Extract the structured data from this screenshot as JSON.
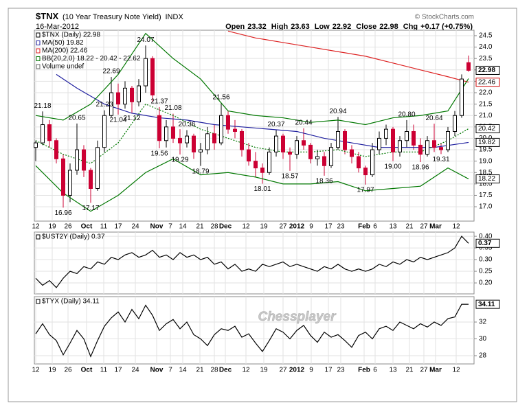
{
  "header": {
    "symbol": "$TNX",
    "name": "(10 Year Treasury Note Yield)",
    "exchange": "INDX",
    "date": "16-Mar-2012",
    "quote": [
      {
        "label": "Open",
        "value": "23.32"
      },
      {
        "label": "High",
        "value": "23.63"
      },
      {
        "label": "Low",
        "value": "22.92"
      },
      {
        "label": "Close",
        "value": "22.98"
      },
      {
        "label": "Chg",
        "value": "+0.17 (+0.75%)"
      }
    ],
    "source": "© StockCharts.com",
    "watermark": "Chessplayer"
  },
  "chart_data": [
    {
      "type": "candlestick",
      "legend": [
        {
          "label": "$TNX (Daily) 22.98",
          "color": "#000000"
        },
        {
          "label": "MA(50) 19.82",
          "color": "#1f1f9f"
        },
        {
          "label": "MA(200) 22.46",
          "color": "#dd2222"
        },
        {
          "label": "BB(20,2.0) 18.22 - 20.42 - 22.62",
          "color": "#007700"
        },
        {
          "label": "Volume undef",
          "color": "#666666"
        }
      ],
      "up_color": "#000000",
      "down_color": "#cc0033",
      "open": [
        19.6,
        19.8,
        20.6,
        19.9,
        19.1,
        17.5,
        18.6,
        19.5,
        18.6,
        17.8,
        19.6,
        21.0,
        22.0,
        21.5,
        22.2,
        21.6,
        22.3,
        23.5,
        21.0,
        19.9,
        20.5,
        20.0,
        19.8,
        20.1,
        19.4,
        19.5,
        20.2,
        19.8,
        21.0,
        20.4,
        20.3,
        19.5,
        19.0,
        18.7,
        18.5,
        19.4,
        20.1,
        19.4,
        19.3,
        19.9,
        19.7,
        19.1,
        19.2,
        18.8,
        19.6,
        20.3,
        19.5,
        19.2,
        18.7,
        18.4,
        19.5,
        20.0,
        20.4,
        19.4,
        19.9,
        20.3,
        19.7,
        19.3,
        19.9,
        19.6,
        19.5,
        20.3,
        21.0,
        23.32
      ],
      "high": [
        19.9,
        21.18,
        20.8,
        20.0,
        19.3,
        18.9,
        20.65,
        19.7,
        18.7,
        19.9,
        21.23,
        22.69,
        22.4,
        22.5,
        22.3,
        22.6,
        24.07,
        23.6,
        21.37,
        20.8,
        21.08,
        20.4,
        20.36,
        20.2,
        19.8,
        20.5,
        20.6,
        21.56,
        21.2,
        20.8,
        20.4,
        19.8,
        19.4,
        18.9,
        19.6,
        20.37,
        20.2,
        19.6,
        20.1,
        20.44,
        19.8,
        19.5,
        19.4,
        19.8,
        20.94,
        20.4,
        19.7,
        19.4,
        18.8,
        19.8,
        20.3,
        20.6,
        20.5,
        20.1,
        20.8,
        20.6,
        20.0,
        20.1,
        20.64,
        19.8,
        20.5,
        21.2,
        22.8,
        23.63
      ],
      "low": [
        19.0,
        19.7,
        19.6,
        18.9,
        16.96,
        17.2,
        18.4,
        18.3,
        17.17,
        17.7,
        19.4,
        20.9,
        21.04,
        21.3,
        21.12,
        21.4,
        22.0,
        21.6,
        19.56,
        19.6,
        19.8,
        19.29,
        19.6,
        19.1,
        18.79,
        19.3,
        19.5,
        19.7,
        20.2,
        20.0,
        19.2,
        18.8,
        18.3,
        18.01,
        18.4,
        19.2,
        19.1,
        18.57,
        19.1,
        19.5,
        18.9,
        18.8,
        18.36,
        18.7,
        19.5,
        19.3,
        18.9,
        18.5,
        17.97,
        18.3,
        19.3,
        19.7,
        19.0,
        19.2,
        19.6,
        19.5,
        18.96,
        19.2,
        19.4,
        19.31,
        19.4,
        20.1,
        20.9,
        22.92
      ],
      "close": [
        19.8,
        20.6,
        19.9,
        19.1,
        17.5,
        18.6,
        19.5,
        18.6,
        17.8,
        19.6,
        21.0,
        22.0,
        21.5,
        22.2,
        21.6,
        22.3,
        23.5,
        21.9,
        19.9,
        20.5,
        20.0,
        19.8,
        20.1,
        19.4,
        19.5,
        20.2,
        19.8,
        21.0,
        20.4,
        20.3,
        19.5,
        19.0,
        18.7,
        18.5,
        19.4,
        20.1,
        19.4,
        19.3,
        19.9,
        19.7,
        19.1,
        19.2,
        18.8,
        19.6,
        20.3,
        19.5,
        19.2,
        18.7,
        18.4,
        19.5,
        20.0,
        20.4,
        19.4,
        19.9,
        20.3,
        19.7,
        19.3,
        19.9,
        19.6,
        19.5,
        20.3,
        21.0,
        22.6,
        22.98
      ],
      "series": [
        {
          "color": "#1f1f9f",
          "dash": false,
          "x": [
            3,
            6,
            10,
            14,
            18,
            22,
            26,
            30,
            34,
            38,
            42,
            46,
            50,
            54,
            58,
            63
          ],
          "values": [
            22.8,
            22.2,
            21.5,
            21.1,
            20.9,
            20.8,
            20.6,
            20.5,
            20.4,
            20.3,
            20.0,
            19.8,
            19.6,
            19.6,
            19.6,
            19.82
          ]
        },
        {
          "color": "#dd2222",
          "dash": false,
          "x": [
            28,
            32,
            36,
            40,
            44,
            48,
            52,
            56,
            60,
            63
          ],
          "values": [
            24.7,
            24.4,
            24.2,
            24.0,
            23.8,
            23.6,
            23.3,
            23.0,
            22.7,
            22.46
          ]
        },
        {
          "color": "#007700",
          "dash": false,
          "x": [
            0,
            4,
            8,
            12,
            16,
            20,
            24,
            28,
            32,
            36,
            40,
            44,
            48,
            52,
            56,
            60,
            63
          ],
          "values": [
            21.0,
            20.8,
            21.5,
            22.8,
            24.6,
            23.5,
            22.6,
            21.2,
            21.0,
            20.9,
            20.7,
            20.8,
            20.6,
            20.9,
            21.0,
            21.2,
            22.62
          ]
        },
        {
          "color": "#007700",
          "dash": false,
          "x": [
            0,
            4,
            8,
            12,
            16,
            20,
            24,
            28,
            32,
            36,
            40,
            44,
            48,
            52,
            56,
            60,
            63
          ],
          "values": [
            18.8,
            17.6,
            16.8,
            17.5,
            18.5,
            19.1,
            18.4,
            18.5,
            18.3,
            18.0,
            18.0,
            18.1,
            17.7,
            17.8,
            17.9,
            18.7,
            18.22
          ]
        },
        {
          "color": "#007700",
          "dash": true,
          "x": [
            0,
            4,
            8,
            12,
            16,
            20,
            24,
            28,
            32,
            36,
            40,
            44,
            48,
            52,
            56,
            60,
            63
          ],
          "values": [
            19.9,
            19.3,
            18.9,
            19.8,
            21.5,
            21.0,
            20.4,
            20.0,
            19.6,
            19.4,
            19.4,
            19.5,
            19.2,
            19.4,
            19.4,
            19.9,
            20.42
          ]
        }
      ],
      "annotations": [
        {
          "x": 1,
          "value": 21.18,
          "side": "above"
        },
        {
          "x": 6,
          "value": 20.65,
          "side": "above"
        },
        {
          "x": 10,
          "value": 21.23,
          "side": "above"
        },
        {
          "x": 11,
          "value": 22.69,
          "side": "above"
        },
        {
          "x": 16,
          "value": 24.07,
          "side": "above"
        },
        {
          "x": 18,
          "value": 21.37,
          "side": "above"
        },
        {
          "x": 20,
          "value": 21.08,
          "side": "above"
        },
        {
          "x": 22,
          "value": 20.36,
          "side": "above"
        },
        {
          "x": 27,
          "value": 21.56,
          "side": "above"
        },
        {
          "x": 35,
          "value": 20.37,
          "side": "above"
        },
        {
          "x": 39,
          "value": 20.44,
          "side": "above"
        },
        {
          "x": 44,
          "value": 20.94,
          "side": "above"
        },
        {
          "x": 54,
          "value": 20.8,
          "label": "20.80",
          "side": "above"
        },
        {
          "x": 58,
          "value": 20.64,
          "side": "above"
        },
        {
          "x": 4,
          "value": 16.96,
          "side": "below"
        },
        {
          "x": 8,
          "value": 17.17,
          "side": "below"
        },
        {
          "x": 12,
          "value": 21.04,
          "side": "below"
        },
        {
          "x": 14,
          "value": 21.12,
          "side": "below"
        },
        {
          "x": 18,
          "value": 19.56,
          "side": "below"
        },
        {
          "x": 21,
          "value": 19.29,
          "side": "below"
        },
        {
          "x": 24,
          "value": 18.79,
          "side": "below"
        },
        {
          "x": 33,
          "value": 18.01,
          "side": "below"
        },
        {
          "x": 37,
          "value": 18.57,
          "side": "below"
        },
        {
          "x": 42,
          "value": 18.36,
          "side": "below"
        },
        {
          "x": 48,
          "value": 17.97,
          "side": "below"
        },
        {
          "x": 52,
          "value": 19,
          "label": "19.00",
          "side": "below"
        },
        {
          "x": 56,
          "value": 18.96,
          "side": "below"
        },
        {
          "x": 59,
          "value": 19.31,
          "side": "below"
        }
      ],
      "last_labels": [
        {
          "value": 22.98,
          "color": "#000000",
          "bold": true
        },
        {
          "value": 22.46,
          "color": "#cc0000",
          "bold": false
        },
        {
          "value": 20.42,
          "color": "#000000",
          "bold": false
        },
        {
          "value": 19.82,
          "color": "#000000",
          "bold": false
        },
        {
          "value": 18.22,
          "color": "#000000",
          "bold": false
        }
      ],
      "xlim": [
        -0.2,
        63.8
      ],
      "xticks": [
        {
          "value": 0,
          "label": "12"
        },
        {
          "value": 2.4,
          "label": "19"
        },
        {
          "value": 4.7,
          "label": "26"
        },
        {
          "value": 7.4,
          "label": "Oct"
        },
        {
          "value": 9.9,
          "label": "11"
        },
        {
          "value": 12,
          "label": "17"
        },
        {
          "value": 14.5,
          "label": "24"
        },
        {
          "value": 17.6,
          "label": "Nov"
        },
        {
          "value": 19.6,
          "label": "7"
        },
        {
          "value": 21.4,
          "label": "14"
        },
        {
          "value": 23.9,
          "label": "21"
        },
        {
          "value": 26,
          "label": "28"
        },
        {
          "value": 27.6,
          "label": "Dec"
        },
        {
          "value": 30.6,
          "label": "12"
        },
        {
          "value": 33.2,
          "label": "19"
        },
        {
          "value": 36,
          "label": "27"
        },
        {
          "value": 38,
          "label": "2012"
        },
        {
          "value": 40.1,
          "label": "9"
        },
        {
          "value": 42.6,
          "label": "17"
        },
        {
          "value": 44.4,
          "label": "23"
        },
        {
          "value": 47.8,
          "label": "Feb"
        },
        {
          "value": 49.4,
          "label": "6"
        },
        {
          "value": 52,
          "label": "13"
        },
        {
          "value": 54.4,
          "label": "21"
        },
        {
          "value": 56.5,
          "label": "27"
        },
        {
          "value": 58.2,
          "label": "Mar"
        },
        {
          "value": 61.2,
          "label": "12"
        }
      ],
      "bold_xticks": [
        "Oct",
        "Nov",
        "Dec",
        "2012",
        "Feb",
        "Mar"
      ],
      "ylim": [
        16.37,
        24.74
      ],
      "yticks": [
        24.5,
        {
          "value": 24,
          "label": "24.0"
        },
        23.5,
        {
          "value": 23,
          "label": "23.0"
        },
        22.5,
        {
          "value": 22,
          "label": "22.0"
        },
        21.5,
        {
          "value": 21,
          "label": "21.0"
        },
        20.5,
        {
          "value": 20,
          "label": "20.0"
        },
        19.5,
        {
          "value": 19,
          "label": "19.0"
        },
        18.5,
        {
          "value": 18,
          "label": "18.0"
        },
        17.5,
        {
          "value": 17,
          "label": "17.0"
        }
      ],
      "grid": true
    },
    {
      "type": "line",
      "legend": [
        {
          "label": "$UST2Y (Daily) 0.37",
          "color": "#000000"
        }
      ],
      "series": [
        {
          "color": "#000000",
          "values": [
            0.22,
            0.19,
            0.21,
            0.18,
            0.22,
            0.25,
            0.24,
            0.27,
            0.26,
            0.29,
            0.28,
            0.31,
            0.3,
            0.32,
            0.33,
            0.31,
            0.32,
            0.34,
            0.31,
            0.32,
            0.3,
            0.33,
            0.31,
            0.32,
            0.3,
            0.31,
            0.28,
            0.29,
            0.26,
            0.28,
            0.25,
            0.26,
            0.25,
            0.28,
            0.27,
            0.28,
            0.29,
            0.27,
            0.28,
            0.27,
            0.26,
            0.25,
            0.27,
            0.26,
            0.28,
            0.26,
            0.25,
            0.26,
            0.25,
            0.26,
            0.28,
            0.27,
            0.29,
            0.28,
            0.3,
            0.29,
            0.31,
            0.3,
            0.31,
            0.32,
            0.33,
            0.35,
            0.4,
            0.37
          ]
        }
      ],
      "last_labels": [
        {
          "value": 0.37,
          "color": "#000000",
          "bold": true
        }
      ],
      "xlim": [
        -0.2,
        63.8
      ],
      "ylim": [
        0.153,
        0.418
      ],
      "yticks": [
        {
          "value": 0.4,
          "label": "0.40"
        },
        0.35,
        {
          "value": 0.3,
          "label": "0.30"
        },
        0.25,
        {
          "value": 0.2,
          "label": "0.20"
        }
      ],
      "grid": true
    },
    {
      "type": "line",
      "legend": [
        {
          "label": "$TYX (Daily) 34.11",
          "color": "#000000"
        }
      ],
      "series": [
        {
          "color": "#000000",
          "values": [
            30.6,
            31.8,
            30.5,
            29.8,
            28.1,
            29.5,
            31.0,
            30.0,
            27.9,
            29.8,
            31.5,
            32.5,
            33.2,
            32.0,
            33.5,
            32.4,
            34.0,
            32.8,
            31.0,
            31.8,
            32.3,
            31.2,
            32.0,
            30.5,
            30.0,
            29.2,
            30.5,
            31.2,
            31.0,
            31.5,
            30.2,
            30.6,
            29.5,
            28.5,
            29.8,
            31.2,
            30.8,
            30.0,
            31.0,
            31.6,
            30.4,
            29.6,
            30.8,
            30.2,
            30.5,
            29.8,
            29.0,
            30.4,
            30.8,
            30.0,
            31.2,
            31.5,
            31.0,
            32.0,
            31.6,
            31.2,
            31.8,
            31.4,
            32.0,
            31.6,
            32.4,
            32.6,
            34.11,
            34.11
          ]
        }
      ],
      "last_labels": [
        {
          "value": 34.11,
          "color": "#000000",
          "bold": true
        }
      ],
      "xlim": [
        -0.2,
        63.8
      ],
      "ylim": [
        27.02,
        35.02
      ],
      "yticks": [
        32,
        30,
        28
      ],
      "grid": true
    }
  ]
}
